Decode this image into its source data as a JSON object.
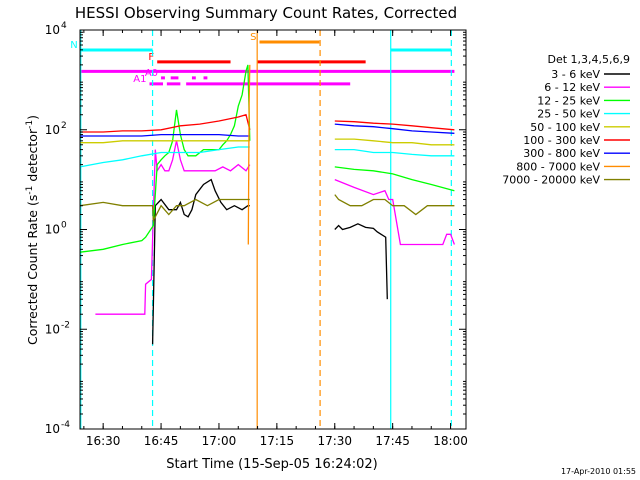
{
  "chart_data": {
    "type": "line",
    "title": "HESSI Observing Summary Count Rates, Corrected",
    "xlabel": "Start Time (15-Sep-05 16:24:02)",
    "ylabel": "Corrected Count Rate (s⁻¹ detector⁻¹)",
    "ylabel_parts": [
      "Corrected Count Rate (s",
      "-1",
      " detector",
      "-1",
      ")"
    ],
    "yscale": "log",
    "xlim_min": [
      984,
      1084
    ],
    "ylim_log10": [
      -4,
      4
    ],
    "x_ticks": [
      {
        "m": 990,
        "label": "16:30"
      },
      {
        "m": 1005,
        "label": "16:45"
      },
      {
        "m": 1020,
        "label": "17:00"
      },
      {
        "m": 1035,
        "label": "17:15"
      },
      {
        "m": 1050,
        "label": "17:30"
      },
      {
        "m": 1065,
        "label": "17:45"
      },
      {
        "m": 1080,
        "label": "18:00"
      }
    ],
    "y_ticks": [
      {
        "exp": -4,
        "label": "10",
        "sup": "-4"
      },
      {
        "exp": -2,
        "label": "10",
        "sup": "-2"
      },
      {
        "exp": 0,
        "label": "10",
        "sup": "0"
      },
      {
        "exp": 2,
        "label": "10",
        "sup": "2"
      },
      {
        "exp": 4,
        "label": "10",
        "sup": "4"
      }
    ],
    "legend_title": "Det 1,3,4,5,6,9",
    "legend_placement": "right",
    "series": [
      {
        "name": "3 - 6 keV",
        "color": "#000000",
        "x": [
          1002.8,
          1003.5,
          1005,
          1007,
          1009,
          1010,
          1011,
          1012,
          1013,
          1014,
          1016,
          1018,
          1019,
          1020.5,
          1022,
          1024,
          1026,
          1027.5,
          1028,
          1050,
          1051,
          1052,
          1054,
          1056,
          1058,
          1060,
          1061,
          1062,
          1063.2,
          1063.6
        ],
        "y": [
          0.005,
          3,
          4,
          2.5,
          2.5,
          3.5,
          2,
          1.8,
          2.5,
          5,
          8,
          10,
          6,
          3.5,
          2.5,
          3,
          2.5,
          3,
          3,
          1.0,
          1.2,
          1.0,
          1.1,
          1.3,
          1.1,
          1.05,
          0.9,
          0.8,
          0.7,
          0.04
        ]
      },
      {
        "name": "6 - 12 keV",
        "color": "#ff00ff",
        "x": [
          988,
          989,
          992,
          1000,
          1000.8,
          1001,
          1002.5,
          1003.5,
          1004,
          1005,
          1006,
          1007,
          1008,
          1009,
          1010,
          1011,
          1013,
          1015,
          1017,
          1019,
          1021,
          1023,
          1025,
          1027,
          1028,
          1050,
          1055,
          1060,
          1063,
          1064,
          1065,
          1067,
          1068,
          1070,
          1078,
          1079,
          1080,
          1081
        ],
        "y": [
          0.02,
          0.02,
          0.02,
          0.02,
          0.02,
          0.08,
          0.1,
          40,
          15,
          20,
          15,
          15,
          25,
          60,
          25,
          15,
          15,
          15,
          15,
          15,
          18,
          15,
          20,
          15,
          20,
          10,
          7,
          5,
          6,
          4,
          4,
          0.5,
          0.5,
          0.5,
          0.5,
          0.8,
          0.8,
          0.5
        ]
      },
      {
        "name": "12 - 25 keV",
        "color": "#00ff00",
        "x": [
          984,
          990,
          995,
          1000,
          1001,
          1003,
          1004,
          1005,
          1006,
          1007,
          1008,
          1009,
          1010,
          1011,
          1012,
          1014,
          1016,
          1018,
          1020,
          1021,
          1022,
          1023,
          1024,
          1025,
          1026,
          1027,
          1027.5,
          1028,
          1050,
          1055,
          1060,
          1065,
          1070,
          1075,
          1081
        ],
        "y": [
          0.35,
          0.4,
          0.5,
          0.6,
          0.7,
          1.2,
          20,
          25,
          30,
          35,
          60,
          250,
          80,
          40,
          30,
          30,
          40,
          40,
          40,
          50,
          60,
          80,
          120,
          300,
          500,
          1500,
          2000,
          60,
          18,
          16,
          15,
          13,
          10,
          8,
          6
        ]
      },
      {
        "name": "25 - 50 keV",
        "color": "#00ffff",
        "x": [
          984,
          990,
          995,
          1000,
          1005,
          1010,
          1015,
          1020,
          1025,
          1028,
          1050,
          1055,
          1060,
          1065,
          1070,
          1075,
          1081
        ],
        "y": [
          18,
          22,
          25,
          30,
          35,
          35,
          35,
          40,
          45,
          45,
          40,
          40,
          35,
          35,
          32,
          30,
          30
        ]
      },
      {
        "name": "50 - 100 keV",
        "color": "#cccc00",
        "x": [
          984,
          990,
          995,
          1000,
          1005,
          1010,
          1015,
          1020,
          1025,
          1028,
          1050,
          1055,
          1060,
          1065,
          1070,
          1075,
          1081
        ],
        "y": [
          55,
          55,
          60,
          60,
          60,
          60,
          60,
          60,
          60,
          60,
          65,
          65,
          60,
          55,
          55,
          50,
          50
        ]
      },
      {
        "name": "100 - 300 keV",
        "color": "#ff0000",
        "x": [
          984,
          990,
          995,
          1000,
          1005,
          1010,
          1015,
          1020,
          1025,
          1027,
          1028,
          1050,
          1055,
          1060,
          1065,
          1070,
          1075,
          1081
        ],
        "y": [
          90,
          90,
          95,
          95,
          100,
          120,
          130,
          150,
          180,
          200,
          100,
          150,
          145,
          135,
          130,
          120,
          110,
          100
        ]
      },
      {
        "name": "300 - 800 keV",
        "color": "#0000ff",
        "x": [
          984,
          990,
          995,
          1000,
          1005,
          1010,
          1015,
          1020,
          1025,
          1028,
          1050,
          1055,
          1060,
          1065,
          1070,
          1075,
          1081
        ],
        "y": [
          75,
          75,
          75,
          75,
          80,
          80,
          80,
          80,
          75,
          75,
          130,
          120,
          115,
          105,
          95,
          90,
          85
        ]
      },
      {
        "name": "800 - 7000 keV",
        "color": "#ff8c00",
        "x": [
          1027.6,
          1027.8,
          1028
        ],
        "y": [
          0.5,
          300,
          2000
        ]
      },
      {
        "name": "7000 - 20000 keV",
        "color": "#808000",
        "x": [
          984,
          990,
          995,
          1000,
          1002.8,
          1003,
          1005,
          1007,
          1009,
          1011,
          1014,
          1017,
          1020,
          1023,
          1025,
          1028,
          1050,
          1051,
          1054,
          1057,
          1060,
          1063,
          1065,
          1068,
          1071,
          1074,
          1077,
          1081
        ],
        "y": [
          3,
          3.5,
          3,
          3,
          3,
          1.5,
          3,
          2,
          3,
          3,
          4,
          3,
          4,
          4,
          4,
          4,
          5,
          4,
          3,
          3,
          4,
          4,
          3,
          3,
          2,
          3,
          3,
          3
        ]
      }
    ],
    "vertical_lines": [
      {
        "m": 984.2,
        "color": "#00ffff",
        "style": "solid"
      },
      {
        "m": 1002.8,
        "color": "#00ffff",
        "style": "dashed"
      },
      {
        "m": 1064.5,
        "color": "#00ffff",
        "style": "solid"
      },
      {
        "m": 1080.2,
        "color": "#00ffff",
        "style": "dashed"
      },
      {
        "m": 1029.9,
        "color": "#ff8c00",
        "style": "solid"
      },
      {
        "m": 1046.2,
        "color": "#ff8c00",
        "style": "dashed"
      }
    ],
    "flag_bars": [
      {
        "label": "N",
        "color": "#00ffff",
        "exp": 3.6,
        "segments": [
          [
            984.2,
            1002.8
          ],
          [
            1064.5,
            1080.2
          ]
        ]
      },
      {
        "label": "S",
        "color": "#ff8c00",
        "exp": 3.76,
        "segments": [
          [
            1030.5,
            1046
          ]
        ]
      },
      {
        "label": "F",
        "color": "#ff0000",
        "exp": 3.36,
        "segments": [
          [
            1004,
            1023
          ],
          [
            1030,
            1058
          ]
        ]
      },
      {
        "label": "",
        "color": "#ff00ff",
        "exp": 3.17,
        "segments": [
          [
            984.2,
            1081
          ]
        ]
      },
      {
        "label": "A0",
        "color": "#ff00ff",
        "exp": 3.04,
        "segments": [
          [
            1005,
            1006
          ],
          [
            1007.5,
            1009.5
          ],
          [
            1013,
            1014
          ],
          [
            1016,
            1017
          ]
        ]
      },
      {
        "label": "A1",
        "color": "#ff00ff",
        "exp": 2.92,
        "segments": [
          [
            1002,
            1005.5
          ],
          [
            1006.5,
            1010
          ],
          [
            1011.5,
            1054
          ]
        ]
      }
    ],
    "timestamp": "17-Apr-2010 01:55"
  }
}
